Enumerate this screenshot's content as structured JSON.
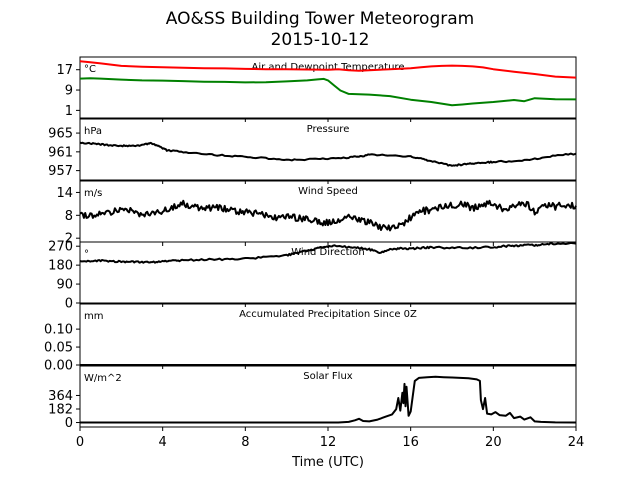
{
  "chart": {
    "title_line1": "AO&SS Building Tower Meteorogram",
    "title_line2": "2015-10-12",
    "xlabel": "Time (UTC)"
  },
  "chart_data": {
    "type": "line",
    "title": "AO&SS Building Tower Meteorogram 2015-10-12",
    "xlabel": "Time (UTC)",
    "xlim": [
      0,
      24
    ],
    "x_ticks": [
      0,
      4,
      8,
      12,
      16,
      20,
      24
    ],
    "grid": false,
    "panels": [
      {
        "title": "Air and Dewpoint Temperature",
        "unit": "°C",
        "ylim": [
          -2,
          22
        ],
        "y_ticks": [
          1,
          9,
          17
        ],
        "series": [
          {
            "color": "#ff0000",
            "x": [
              0,
              0.5,
              1,
              1.5,
              2,
              3,
              4,
              5,
              6,
              7,
              8,
              9,
              10,
              11,
              12,
              12.5,
              13,
              13.5,
              14,
              15,
              16,
              16.5,
              17,
              17.5,
              18,
              18.5,
              19,
              19.5,
              20,
              21,
              22,
              23,
              24
            ],
            "y": [
              20.3,
              19.9,
              19.5,
              19.0,
              18.5,
              18.2,
              18.0,
              17.8,
              17.6,
              17.5,
              17.3,
              17.2,
              17.2,
              17.1,
              17.0,
              17.2,
              16.8,
              16.6,
              16.8,
              17.2,
              17.6,
              18.0,
              18.3,
              18.5,
              18.6,
              18.5,
              18.3,
              17.9,
              17.2,
              16.2,
              15.3,
              14.3,
              13.9
            ]
          },
          {
            "color": "#008000",
            "x": [
              0,
              0.5,
              1,
              1.5,
              2,
              3,
              4,
              5,
              6,
              7,
              8,
              9,
              10,
              11,
              11.5,
              11.8,
              12,
              12.3,
              12.6,
              13,
              14,
              15,
              16,
              17,
              18,
              18.5,
              19,
              20,
              21,
              21.5,
              22,
              23,
              24
            ],
            "y": [
              13.5,
              13.6,
              13.5,
              13.3,
              13.1,
              12.8,
              12.7,
              12.5,
              12.3,
              12.2,
              12.0,
              12.1,
              12.4,
              12.8,
              13.2,
              13.4,
              12.8,
              10.8,
              8.8,
              7.5,
              7.2,
              6.6,
              5.2,
              4.3,
              3.0,
              3.3,
              3.7,
              4.3,
              5.1,
              4.6,
              5.8,
              5.4,
              5.3
            ]
          }
        ]
      },
      {
        "title": "Pressure",
        "unit": "hPa",
        "ylim": [
          955,
          968
        ],
        "y_ticks": [
          957,
          961,
          965
        ],
        "series": [
          {
            "color": "#000000",
            "x": [
              0,
              0.5,
              1,
              1.5,
              2,
              2.5,
              3,
              3.4,
              3.8,
              4.2,
              5,
              6,
              7,
              8,
              9,
              10,
              11,
              12,
              13,
              13.5,
              14,
              15,
              16,
              16.5,
              17,
              17.5,
              18,
              18.5,
              19,
              19.5,
              20,
              21,
              22,
              23,
              24
            ],
            "y": [
              963.0,
              962.8,
              962.6,
              962.4,
              962.3,
              962.2,
              962.4,
              962.8,
              962.3,
              961.3,
              961.0,
              960.5,
              960.2,
              960.0,
              959.6,
              959.2,
              959.4,
              959.5,
              959.8,
              960.0,
              960.4,
              960.2,
              960.0,
              959.6,
              959.0,
              958.5,
              958.0,
              958.3,
              958.5,
              958.6,
              958.9,
              959.0,
              959.5,
              960.2,
              960.6
            ]
          }
        ]
      },
      {
        "title": "Wind Speed",
        "unit": "m/s",
        "ylim": [
          1,
          17
        ],
        "y_ticks": [
          2,
          8,
          14
        ],
        "series": [
          {
            "color": "#000000",
            "x": [
              0,
              0.5,
              1,
              1.5,
              2,
              2.5,
              3,
              3.5,
              4,
              4.5,
              5,
              5.5,
              6,
              6.5,
              7,
              7.5,
              8,
              8.5,
              9,
              9.5,
              10,
              10.5,
              11,
              11.5,
              12,
              12.5,
              13,
              13.5,
              14,
              14.5,
              15,
              15.5,
              16,
              16.5,
              17,
              17.5,
              18,
              18.5,
              19,
              19.5,
              20,
              20.5,
              21,
              21.5,
              22,
              22.5,
              23,
              23.5,
              24
            ],
            "y": [
              8.0,
              7.8,
              8.5,
              9.0,
              10.0,
              9.5,
              8.2,
              8.5,
              9.2,
              10.3,
              11.0,
              10.0,
              9.5,
              10.2,
              9.8,
              9.0,
              9.0,
              8.5,
              8.0,
              7.5,
              7.8,
              7.2,
              7.0,
              6.5,
              6.0,
              6.5,
              7.5,
              7.0,
              6.0,
              5.0,
              4.5,
              5.2,
              7.5,
              9.0,
              9.5,
              10.0,
              10.5,
              11.0,
              10.0,
              10.5,
              11.2,
              9.5,
              10.0,
              11.5,
              9.0,
              11.0,
              10.2,
              10.8,
              10.5
            ]
          }
        ]
      },
      {
        "title": "Wind Direction",
        "unit": "°",
        "ylim": [
          0,
          290
        ],
        "y_ticks": [
          0,
          90,
          180,
          270
        ],
        "series": [
          {
            "color": "#000000",
            "x": [
              0,
              0.5,
              1,
              1.5,
              2,
              2.5,
              3,
              3.5,
              4,
              4.5,
              5,
              6,
              7,
              8,
              9,
              10,
              10.5,
              11,
              11.5,
              12,
              12.5,
              13,
              13.5,
              14,
              14.5,
              15,
              15.5,
              16,
              16.5,
              17,
              18,
              19,
              20,
              20.5,
              21,
              21.5,
              22,
              22.5,
              23,
              24
            ],
            "y": [
              200,
              198,
              201,
              199,
              197,
              196,
              195,
              193,
              197,
              200,
              203,
              206,
              208,
              210,
              218,
              228,
              237,
              250,
              260,
              270,
              272,
              265,
              262,
              255,
              240,
              255,
              260,
              258,
              262,
              265,
              262,
              263,
              266,
              270,
              272,
              275,
              275,
              280,
              283,
              282
            ]
          }
        ]
      },
      {
        "title": "Accumulated Precipitation Since 0Z",
        "unit": "mm",
        "ylim": [
          0,
          0.17
        ],
        "y_ticks": [
          0.0,
          0.05,
          0.1
        ],
        "series": [
          {
            "color": "#000000",
            "x": [
              0,
              24
            ],
            "y": [
              0,
              0
            ]
          }
        ]
      },
      {
        "title": "Solar Flux",
        "unit": "W/m^2",
        "ylim": [
          -60,
          760
        ],
        "y_ticks": [
          0,
          182,
          364
        ],
        "series": [
          {
            "color": "#000000",
            "x": [
              0,
              12.5,
              13.0,
              13.3,
              13.5,
              13.7,
              14.0,
              14.4,
              14.8,
              15.1,
              15.3,
              15.4,
              15.5,
              15.6,
              15.65,
              15.7,
              15.75,
              15.8,
              15.9,
              16.0,
              16.2,
              16.4,
              16.8,
              17.2,
              17.6,
              18.0,
              18.4,
              18.8,
              19.2,
              19.35,
              19.4,
              19.5,
              19.6,
              19.7,
              19.9,
              20.1,
              20.3,
              20.6,
              20.8,
              21.0,
              21.3,
              21.5,
              21.8,
              22.0,
              22.3,
              23.0,
              24.0
            ],
            "y": [
              0,
              0,
              8,
              30,
              50,
              20,
              15,
              40,
              80,
              110,
              180,
              330,
              160,
              400,
              260,
              520,
              220,
              480,
              90,
              150,
              560,
              600,
              610,
              615,
              610,
              605,
              600,
              595,
              580,
              560,
              300,
              180,
              330,
              120,
              110,
              140,
              100,
              90,
              130,
              60,
              80,
              40,
              70,
              15,
              8,
              2,
              0
            ]
          }
        ]
      }
    ]
  }
}
